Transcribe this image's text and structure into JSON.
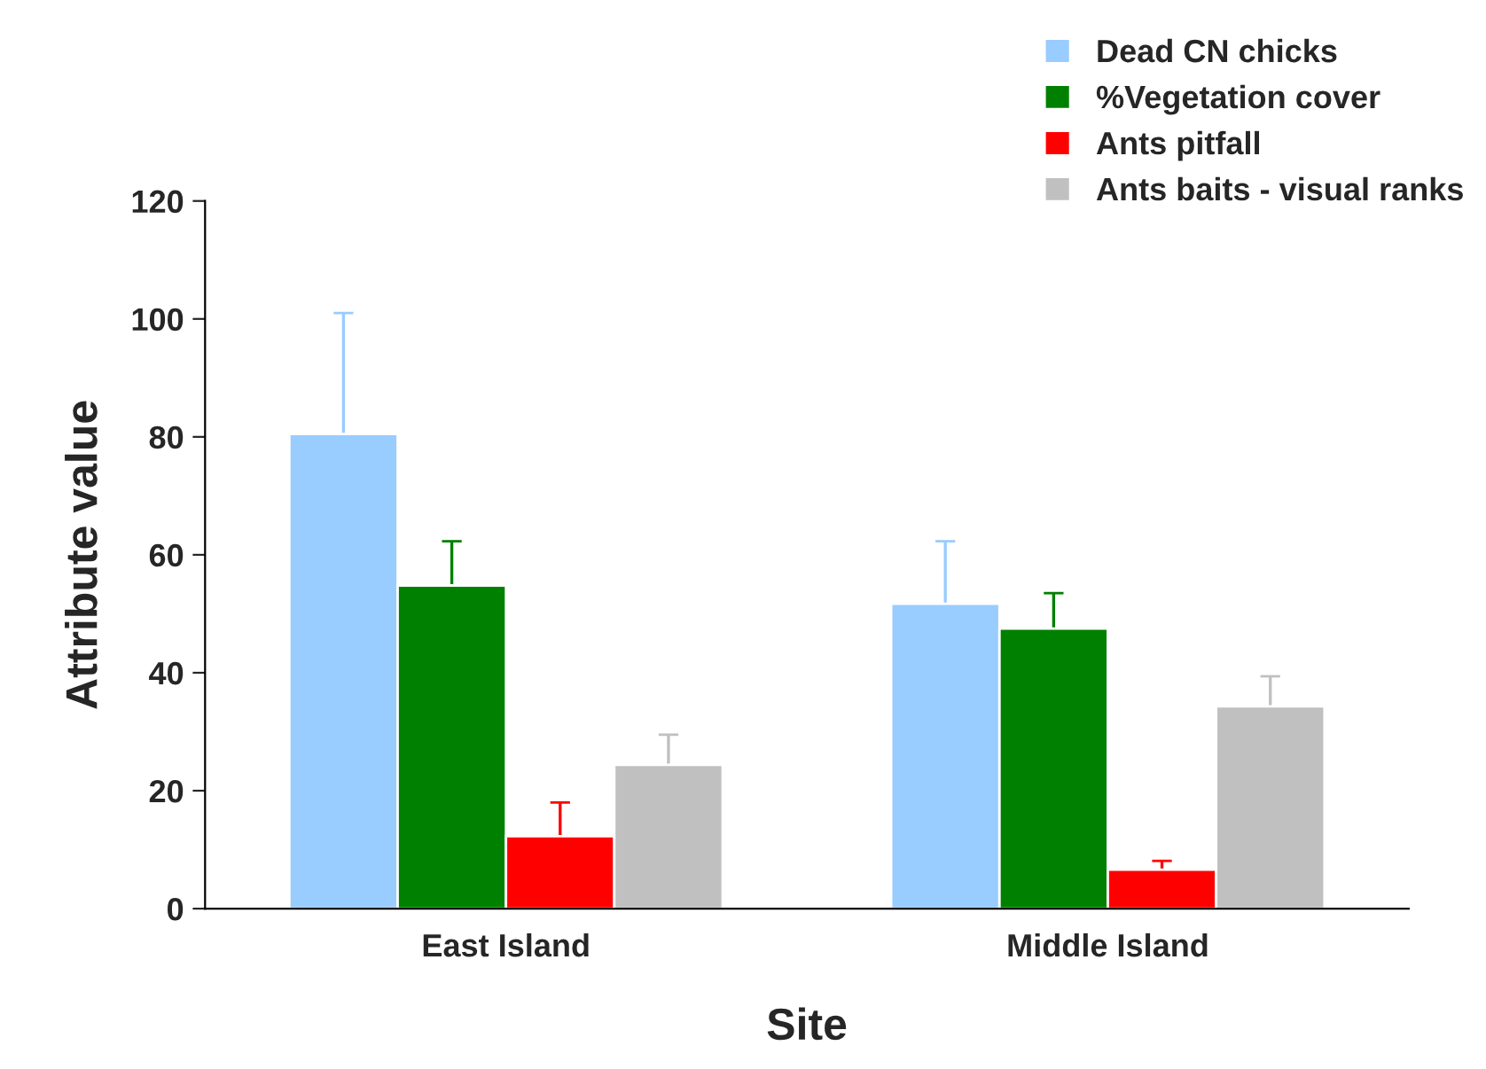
{
  "chart_data": {
    "type": "bar",
    "xlabel": "Site",
    "ylabel": "Attribute value",
    "categories": [
      "East Island",
      "Middle Island"
    ],
    "series": [
      {
        "name": "Dead CN chicks",
        "color": "#99ccff",
        "values": [
          80.5,
          51.7
        ],
        "errors": [
          20.5,
          10.6
        ]
      },
      {
        "name": "%Vegetation cover",
        "color": "#008000",
        "values": [
          54.8,
          47.5
        ],
        "errors": [
          7.5,
          6
        ]
      },
      {
        "name": "Ants pitfall",
        "color": "#ff0000",
        "values": [
          12.3,
          6.6
        ],
        "errors": [
          5.7,
          1.5
        ]
      },
      {
        "name": "Ants baits - visual ranks",
        "color": "#c0c0c0",
        "values": [
          24.4,
          34.3
        ],
        "errors": [
          5.1,
          5.1
        ]
      }
    ],
    "ylim": [
      0,
      120
    ],
    "yticks": [
      0,
      20,
      40,
      60,
      80,
      100,
      120
    ],
    "grid": false,
    "legend": "top right"
  }
}
